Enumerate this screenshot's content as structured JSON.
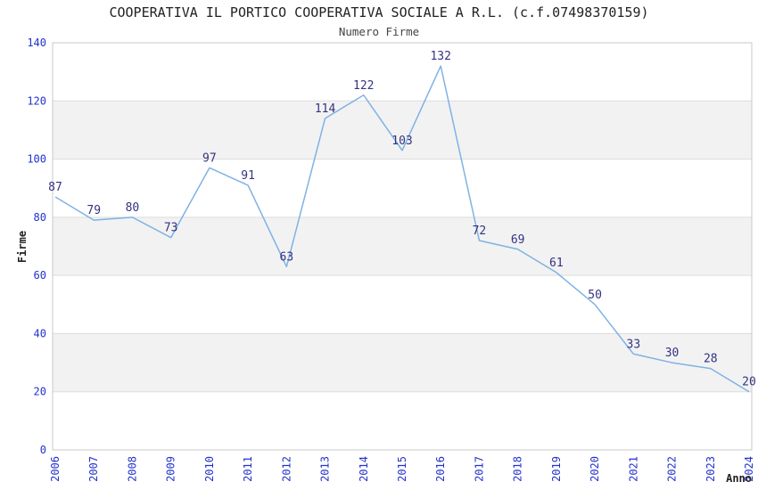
{
  "chart_data": {
    "type": "line",
    "title": "COOPERATIVA IL PORTICO COOPERATIVA SOCIALE A R.L. (c.f.07498370159)",
    "subtitle": "Numero Firme",
    "xlabel": "Anno",
    "ylabel": "Firme",
    "categories": [
      "2006",
      "2007",
      "2008",
      "2009",
      "2010",
      "2011",
      "2012",
      "2013",
      "2014",
      "2015",
      "2016",
      "2017",
      "2018",
      "2019",
      "2020",
      "2021",
      "2022",
      "2023",
      "2024"
    ],
    "values": [
      87,
      79,
      80,
      73,
      97,
      91,
      63,
      114,
      122,
      103,
      132,
      72,
      69,
      61,
      50,
      33,
      30,
      28,
      20
    ],
    "ylim": [
      0,
      140
    ],
    "ytick_step": 20,
    "yticks": [
      0,
      20,
      40,
      60,
      80,
      100,
      120,
      140
    ],
    "grid": "horizontal",
    "legend": "none",
    "data_labels": true,
    "colors": {
      "line": "#7fb2e4",
      "data_label": "#333382",
      "tick_label": "#2233cc",
      "band": "#f2f2f2",
      "gridline": "#dcdcdc",
      "border": "#c9c9c9",
      "title": "#222222",
      "subtitle": "#444444",
      "background": "#ffffff"
    }
  }
}
